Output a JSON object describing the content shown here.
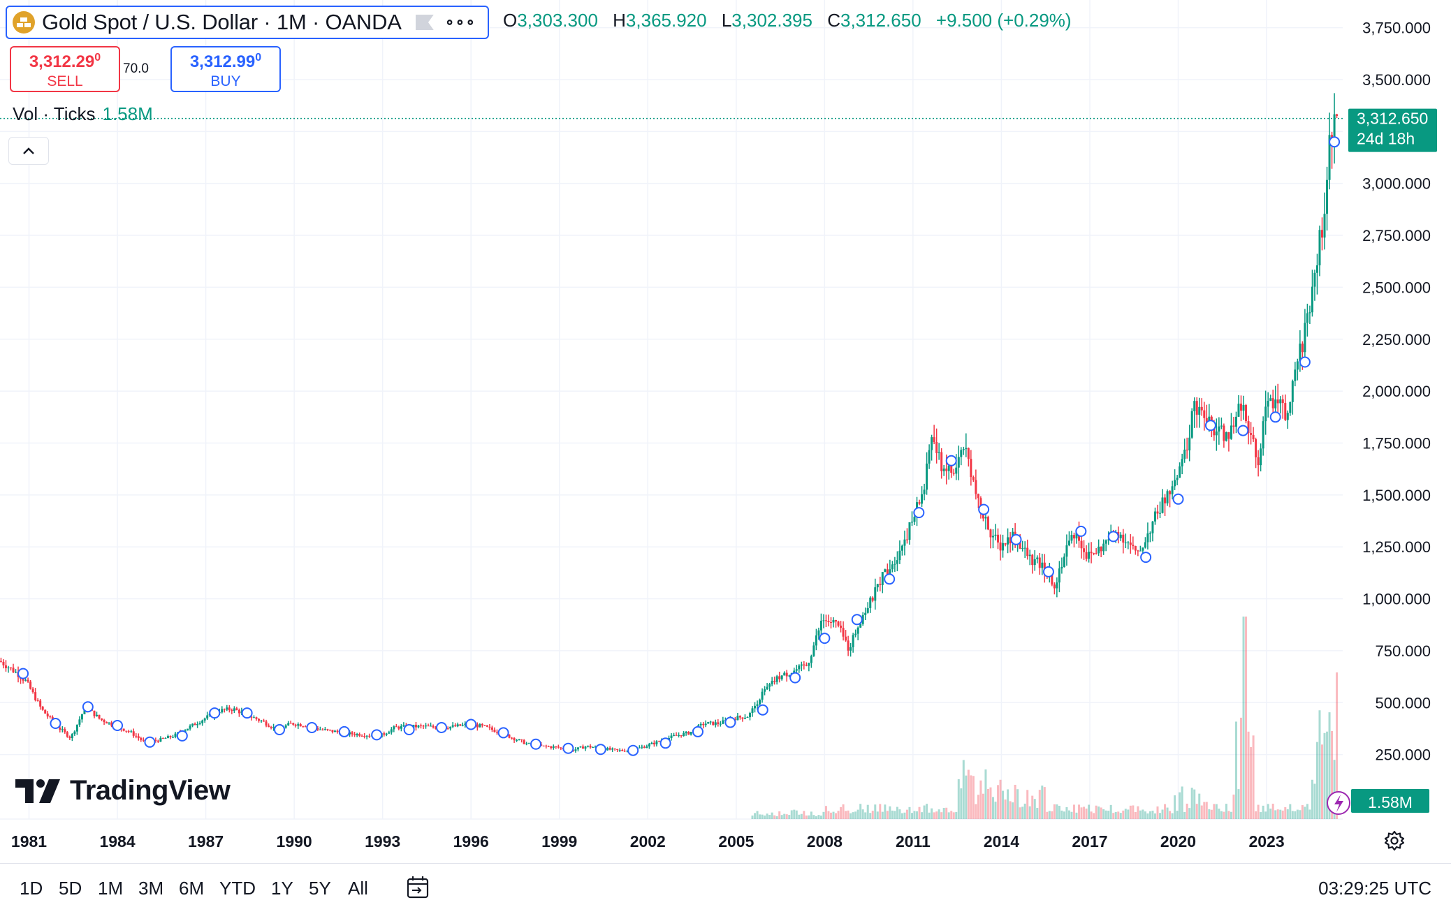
{
  "header": {
    "symbol_title": "Gold Spot / U.S. Dollar · 1M · OANDA",
    "ohlc": [
      {
        "key": "O",
        "value": "3,303.300"
      },
      {
        "key": "H",
        "value": "3,365.920"
      },
      {
        "key": "L",
        "value": "3,302.395"
      },
      {
        "key": "C",
        "value": "3,312.650"
      }
    ],
    "change": "+9.500 (+0.29%)"
  },
  "trade": {
    "sell_price": "3,312.29",
    "sell_price_sup": "0",
    "sell_label": "SELL",
    "spread": "70.0",
    "buy_price": "3,312.99",
    "buy_price_sup": "0",
    "buy_label": "BUY"
  },
  "volume_legend": {
    "label": "Vol · Ticks",
    "value": "1.58M"
  },
  "logo_text": "TradingView",
  "time_ranges": [
    "1D",
    "5D",
    "1M",
    "3M",
    "6M",
    "YTD",
    "1Y",
    "5Y",
    "All"
  ],
  "clock": "03:29:25 UTC",
  "colors": {
    "up": "#089981",
    "down": "#f23645",
    "accent": "#2962ff",
    "gold": "#e0a22a"
  },
  "chart_data": {
    "type": "candlestick",
    "price_axis_labels": [
      "3,750.000",
      "3,500.000",
      "3,250.000",
      "3,000.000",
      "2,750.000",
      "2,500.000",
      "2,250.000",
      "2,000.000",
      "1,750.000",
      "1,500.000",
      "1,250.000",
      "1,000.000",
      "750.000",
      "500.000",
      "250.000"
    ],
    "price_axis_values": [
      3750,
      3500,
      3250,
      3000,
      2750,
      2500,
      2250,
      2000,
      1750,
      1500,
      1250,
      1000,
      750,
      500,
      250
    ],
    "x_axis_labels": [
      "1981",
      "1984",
      "1987",
      "1990",
      "1993",
      "1996",
      "1999",
      "2002",
      "2005",
      "2008",
      "2011",
      "2014",
      "2017",
      "2020",
      "2023"
    ],
    "x_axis_years": [
      1981,
      1984,
      1987,
      1990,
      1993,
      1996,
      1999,
      2002,
      2005,
      2008,
      2011,
      2014,
      2017,
      2020,
      2023
    ],
    "last_price_label": "3,312.650",
    "countdown_label": "24d 18h",
    "last_price": 3312.65,
    "volume_label": "1.58M",
    "series_points": [
      [
        1980.1,
        700
      ],
      [
        1980.7,
        640
      ],
      [
        1981.0,
        600
      ],
      [
        1981.5,
        470
      ],
      [
        1982.0,
        390
      ],
      [
        1982.5,
        330
      ],
      [
        1983.0,
        480
      ],
      [
        1983.5,
        420
      ],
      [
        1984.0,
        390
      ],
      [
        1984.5,
        360
      ],
      [
        1985.0,
        310
      ],
      [
        1985.5,
        320
      ],
      [
        1986.0,
        340
      ],
      [
        1986.5,
        380
      ],
      [
        1987.0,
        420
      ],
      [
        1987.5,
        460
      ],
      [
        1988.0,
        470
      ],
      [
        1988.5,
        440
      ],
      [
        1989.0,
        410
      ],
      [
        1989.5,
        370
      ],
      [
        1990.0,
        400
      ],
      [
        1990.5,
        390
      ],
      [
        1991.0,
        370
      ],
      [
        1991.5,
        360
      ],
      [
        1992.0,
        350
      ],
      [
        1992.5,
        345
      ],
      [
        1993.0,
        340
      ],
      [
        1993.5,
        380
      ],
      [
        1994.0,
        385
      ],
      [
        1994.5,
        385
      ],
      [
        1995.0,
        380
      ],
      [
        1995.5,
        385
      ],
      [
        1996.0,
        395
      ],
      [
        1996.5,
        385
      ],
      [
        1997.0,
        360
      ],
      [
        1997.5,
        330
      ],
      [
        1998.0,
        300
      ],
      [
        1998.5,
        290
      ],
      [
        1999.0,
        285
      ],
      [
        1999.5,
        270
      ],
      [
        2000.0,
        290
      ],
      [
        2000.5,
        280
      ],
      [
        2001.0,
        270
      ],
      [
        2001.5,
        270
      ],
      [
        2002.0,
        290
      ],
      [
        2002.5,
        315
      ],
      [
        2003.0,
        340
      ],
      [
        2003.5,
        355
      ],
      [
        2004.0,
        400
      ],
      [
        2004.5,
        400
      ],
      [
        2005.0,
        425
      ],
      [
        2005.5,
        435
      ],
      [
        2006.0,
        550
      ],
      [
        2006.5,
        620
      ],
      [
        2007.0,
        650
      ],
      [
        2007.5,
        680
      ],
      [
        2008.0,
        900
      ],
      [
        2008.5,
        880
      ],
      [
        2008.9,
        760
      ],
      [
        2009.3,
        900
      ],
      [
        2009.7,
        1000
      ],
      [
        2010.0,
        1100
      ],
      [
        2010.5,
        1200
      ],
      [
        2011.0,
        1350
      ],
      [
        2011.5,
        1550
      ],
      [
        2011.7,
        1800
      ],
      [
        2012.0,
        1650
      ],
      [
        2012.5,
        1600
      ],
      [
        2012.8,
        1750
      ],
      [
        2013.0,
        1650
      ],
      [
        2013.3,
        1450
      ],
      [
        2013.7,
        1330
      ],
      [
        2014.0,
        1250
      ],
      [
        2014.5,
        1310
      ],
      [
        2015.0,
        1200
      ],
      [
        2015.5,
        1150
      ],
      [
        2015.9,
        1070
      ],
      [
        2016.3,
        1250
      ],
      [
        2016.6,
        1330
      ],
      [
        2017.0,
        1200
      ],
      [
        2017.5,
        1250
      ],
      [
        2018.0,
        1330
      ],
      [
        2018.5,
        1250
      ],
      [
        2018.7,
        1200
      ],
      [
        2019.0,
        1300
      ],
      [
        2019.5,
        1450
      ],
      [
        2020.0,
        1550
      ],
      [
        2020.5,
        1800
      ],
      [
        2020.6,
        1960
      ],
      [
        2021.0,
        1850
      ],
      [
        2021.5,
        1800
      ],
      [
        2022.0,
        1800
      ],
      [
        2022.2,
        1950
      ],
      [
        2022.8,
        1640
      ],
      [
        2023.0,
        1900
      ],
      [
        2023.4,
        1980
      ],
      [
        2023.8,
        1850
      ],
      [
        2024.0,
        2050
      ],
      [
        2024.4,
        2300
      ],
      [
        2024.8,
        2650
      ],
      [
        2025.0,
        2800
      ],
      [
        2025.2,
        3150
      ],
      [
        2025.4,
        3312
      ]
    ],
    "marker_points": [
      [
        1980.8,
        640
      ],
      [
        1981.9,
        400
      ],
      [
        1983.0,
        480
      ],
      [
        1984.0,
        390
      ],
      [
        1985.1,
        310
      ],
      [
        1986.2,
        340
      ],
      [
        1987.3,
        450
      ],
      [
        1988.4,
        450
      ],
      [
        1989.5,
        370
      ],
      [
        1990.6,
        380
      ],
      [
        1991.7,
        360
      ],
      [
        1992.8,
        345
      ],
      [
        1993.9,
        370
      ],
      [
        1995.0,
        380
      ],
      [
        1996.0,
        395
      ],
      [
        1997.1,
        355
      ],
      [
        1998.2,
        300
      ],
      [
        1999.3,
        280
      ],
      [
        2000.4,
        275
      ],
      [
        2001.5,
        270
      ],
      [
        2002.6,
        305
      ],
      [
        2003.7,
        360
      ],
      [
        2004.8,
        405
      ],
      [
        2005.9,
        465
      ],
      [
        2007.0,
        620
      ],
      [
        2008.0,
        810
      ],
      [
        2009.1,
        900
      ],
      [
        2010.2,
        1095
      ],
      [
        2011.2,
        1415
      ],
      [
        2012.3,
        1665
      ],
      [
        2013.4,
        1430
      ],
      [
        2014.5,
        1285
      ],
      [
        2015.6,
        1130
      ],
      [
        2016.7,
        1325
      ],
      [
        2017.8,
        1300
      ],
      [
        2018.9,
        1200
      ],
      [
        2020.0,
        1480
      ],
      [
        2021.1,
        1835
      ],
      [
        2022.2,
        1810
      ],
      [
        2023.3,
        1875
      ],
      [
        2024.3,
        2140
      ],
      [
        2025.3,
        3200
      ]
    ]
  }
}
